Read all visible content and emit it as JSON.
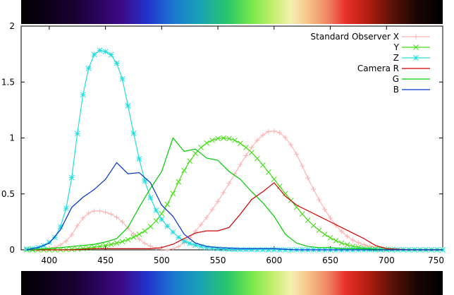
{
  "chart_data": {
    "type": "line",
    "title": "",
    "xlabel": "",
    "ylabel": "",
    "xlim": [
      375,
      750
    ],
    "ylim": [
      0,
      2
    ],
    "x_ticks": [
      400,
      450,
      500,
      550,
      600,
      650,
      700,
      750
    ],
    "y_ticks": [
      0,
      0.5,
      1,
      1.5,
      2
    ],
    "x_tick_labels": [
      "400",
      "450",
      "500",
      "550",
      "600",
      "650",
      "700",
      "750"
    ],
    "y_tick_labels": [
      "0",
      "0.5",
      "1",
      "1.5",
      "2"
    ],
    "grid": false,
    "legend_position": "top-right",
    "legend_titles": [
      "Standard Observer",
      "Camera"
    ],
    "series": [
      {
        "name": "X",
        "group": "Standard Observer",
        "color": "#ffb3b3",
        "marker": "plus",
        "x": [
          380,
          385,
          390,
          395,
          400,
          405,
          410,
          415,
          420,
          425,
          430,
          435,
          440,
          445,
          450,
          455,
          460,
          465,
          470,
          475,
          480,
          485,
          490,
          495,
          500,
          505,
          510,
          515,
          520,
          525,
          530,
          535,
          540,
          545,
          550,
          555,
          560,
          565,
          570,
          575,
          580,
          585,
          590,
          595,
          600,
          605,
          610,
          615,
          620,
          625,
          630,
          635,
          640,
          645,
          650,
          655,
          660,
          665,
          670,
          675,
          680,
          685,
          690,
          695,
          700,
          705,
          710,
          715,
          720,
          725,
          730,
          735,
          740,
          745,
          750
        ],
        "values": [
          0.001,
          0.002,
          0.004,
          0.008,
          0.014,
          0.023,
          0.044,
          0.078,
          0.134,
          0.215,
          0.284,
          0.329,
          0.348,
          0.348,
          0.336,
          0.319,
          0.291,
          0.251,
          0.195,
          0.142,
          0.096,
          0.058,
          0.032,
          0.015,
          0.005,
          0.002,
          0.009,
          0.029,
          0.063,
          0.11,
          0.166,
          0.226,
          0.29,
          0.36,
          0.433,
          0.512,
          0.595,
          0.678,
          0.762,
          0.843,
          0.916,
          0.979,
          1.026,
          1.057,
          1.062,
          1.046,
          1.003,
          0.939,
          0.854,
          0.751,
          0.642,
          0.542,
          0.448,
          0.361,
          0.284,
          0.219,
          0.165,
          0.121,
          0.087,
          0.064,
          0.047,
          0.033,
          0.023,
          0.016,
          0.011,
          0.008,
          0.006,
          0.004,
          0.003,
          0.002,
          0.001,
          0.001,
          0.001,
          0.0,
          0.0
        ]
      },
      {
        "name": "Y",
        "group": "Standard Observer",
        "color": "#44dd11",
        "marker": "cross",
        "x": [
          380,
          385,
          390,
          395,
          400,
          405,
          410,
          415,
          420,
          425,
          430,
          435,
          440,
          445,
          450,
          455,
          460,
          465,
          470,
          475,
          480,
          485,
          490,
          495,
          500,
          505,
          510,
          515,
          520,
          525,
          530,
          535,
          540,
          545,
          550,
          555,
          560,
          565,
          570,
          575,
          580,
          585,
          590,
          595,
          600,
          605,
          610,
          615,
          620,
          625,
          630,
          635,
          640,
          645,
          650,
          655,
          660,
          665,
          670,
          675,
          680,
          685,
          690,
          695,
          700,
          705,
          710,
          715,
          720,
          725,
          730,
          735,
          740,
          745,
          750
        ],
        "values": [
          0.0,
          0.0,
          0.0,
          0.0,
          0.0,
          0.001,
          0.001,
          0.002,
          0.004,
          0.007,
          0.012,
          0.017,
          0.023,
          0.03,
          0.038,
          0.048,
          0.06,
          0.074,
          0.091,
          0.113,
          0.139,
          0.169,
          0.208,
          0.259,
          0.323,
          0.407,
          0.503,
          0.608,
          0.71,
          0.793,
          0.862,
          0.915,
          0.954,
          0.98,
          0.995,
          1.0,
          0.995,
          0.979,
          0.952,
          0.915,
          0.87,
          0.816,
          0.757,
          0.695,
          0.631,
          0.567,
          0.503,
          0.442,
          0.381,
          0.321,
          0.265,
          0.217,
          0.175,
          0.138,
          0.107,
          0.082,
          0.061,
          0.045,
          0.032,
          0.023,
          0.017,
          0.012,
          0.008,
          0.006,
          0.004,
          0.003,
          0.002,
          0.001,
          0.001,
          0.001,
          0.0,
          0.0,
          0.0,
          0.0,
          0.0
        ]
      },
      {
        "name": "Z",
        "group": "Standard Observer",
        "color": "#22dddd",
        "marker": "star",
        "x": [
          380,
          385,
          390,
          395,
          400,
          405,
          410,
          415,
          420,
          425,
          430,
          435,
          440,
          445,
          450,
          455,
          460,
          465,
          470,
          475,
          480,
          485,
          490,
          495,
          500,
          505,
          510,
          515,
          520,
          525,
          530,
          535,
          540,
          545,
          550,
          555,
          560,
          565,
          570,
          575,
          580,
          585,
          590,
          595,
          600,
          605,
          610,
          615,
          620,
          625,
          630,
          635,
          640,
          645,
          650,
          655,
          660,
          665,
          670,
          675,
          680,
          685,
          690,
          695,
          700,
          705,
          710,
          715,
          720,
          725,
          730,
          735,
          740,
          745,
          750
        ],
        "values": [
          0.007,
          0.011,
          0.021,
          0.037,
          0.068,
          0.11,
          0.207,
          0.371,
          0.646,
          1.039,
          1.386,
          1.623,
          1.747,
          1.783,
          1.772,
          1.744,
          1.669,
          1.528,
          1.288,
          1.042,
          0.813,
          0.616,
          0.465,
          0.353,
          0.272,
          0.212,
          0.158,
          0.112,
          0.078,
          0.057,
          0.042,
          0.03,
          0.02,
          0.013,
          0.009,
          0.006,
          0.004,
          0.003,
          0.002,
          0.002,
          0.002,
          0.001,
          0.001,
          0.001,
          0.001,
          0.001,
          0.0,
          0.0,
          0.0,
          0.0,
          0.0,
          0.0,
          0.0,
          0.0,
          0.0,
          0.0,
          0.0,
          0.0,
          0.0,
          0.0,
          0.0,
          0.0,
          0.0,
          0.0,
          0.0,
          0.0,
          0.0,
          0.0,
          0.0,
          0.0,
          0.0,
          0.0,
          0.0,
          0.0,
          0.0
        ]
      },
      {
        "name": "R",
        "group": "Camera",
        "color": "#cc0000",
        "marker": "none",
        "x": [
          380,
          400,
          420,
          440,
          460,
          480,
          490,
          500,
          510,
          520,
          530,
          540,
          550,
          560,
          570,
          580,
          590,
          600,
          610,
          620,
          630,
          640,
          650,
          660,
          670,
          680,
          690,
          700,
          720,
          750
        ],
        "values": [
          0.0,
          0.0,
          0.0,
          0.01,
          0.01,
          0.01,
          0.01,
          0.02,
          0.05,
          0.1,
          0.15,
          0.17,
          0.17,
          0.2,
          0.32,
          0.45,
          0.52,
          0.6,
          0.48,
          0.4,
          0.35,
          0.3,
          0.25,
          0.2,
          0.15,
          0.1,
          0.04,
          0.01,
          0.0,
          0.0
        ]
      },
      {
        "name": "G",
        "group": "Camera",
        "color": "#00cc00",
        "marker": "none",
        "x": [
          380,
          400,
          410,
          420,
          430,
          440,
          450,
          460,
          470,
          480,
          490,
          500,
          510,
          520,
          530,
          540,
          550,
          560,
          570,
          580,
          590,
          600,
          610,
          620,
          630,
          640,
          650,
          660,
          680,
          700,
          750
        ],
        "values": [
          0.0,
          0.01,
          0.02,
          0.03,
          0.04,
          0.05,
          0.07,
          0.1,
          0.2,
          0.38,
          0.55,
          0.7,
          1.0,
          0.88,
          0.9,
          0.82,
          0.8,
          0.7,
          0.63,
          0.52,
          0.42,
          0.3,
          0.14,
          0.06,
          0.03,
          0.02,
          0.02,
          0.01,
          0.01,
          0.0,
          0.0
        ]
      },
      {
        "name": "B",
        "group": "Camera",
        "color": "#0033cc",
        "marker": "none",
        "x": [
          380,
          390,
          400,
          410,
          420,
          430,
          440,
          450,
          460,
          470,
          480,
          490,
          500,
          510,
          520,
          530,
          540,
          550,
          560,
          570,
          580,
          600,
          620,
          650,
          700,
          750
        ],
        "values": [
          0.0,
          0.02,
          0.06,
          0.18,
          0.38,
          0.47,
          0.54,
          0.63,
          0.78,
          0.68,
          0.69,
          0.6,
          0.4,
          0.3,
          0.14,
          0.06,
          0.03,
          0.02,
          0.015,
          0.01,
          0.01,
          0.01,
          0.0,
          0.0,
          0.0,
          0.0
        ]
      }
    ]
  }
}
